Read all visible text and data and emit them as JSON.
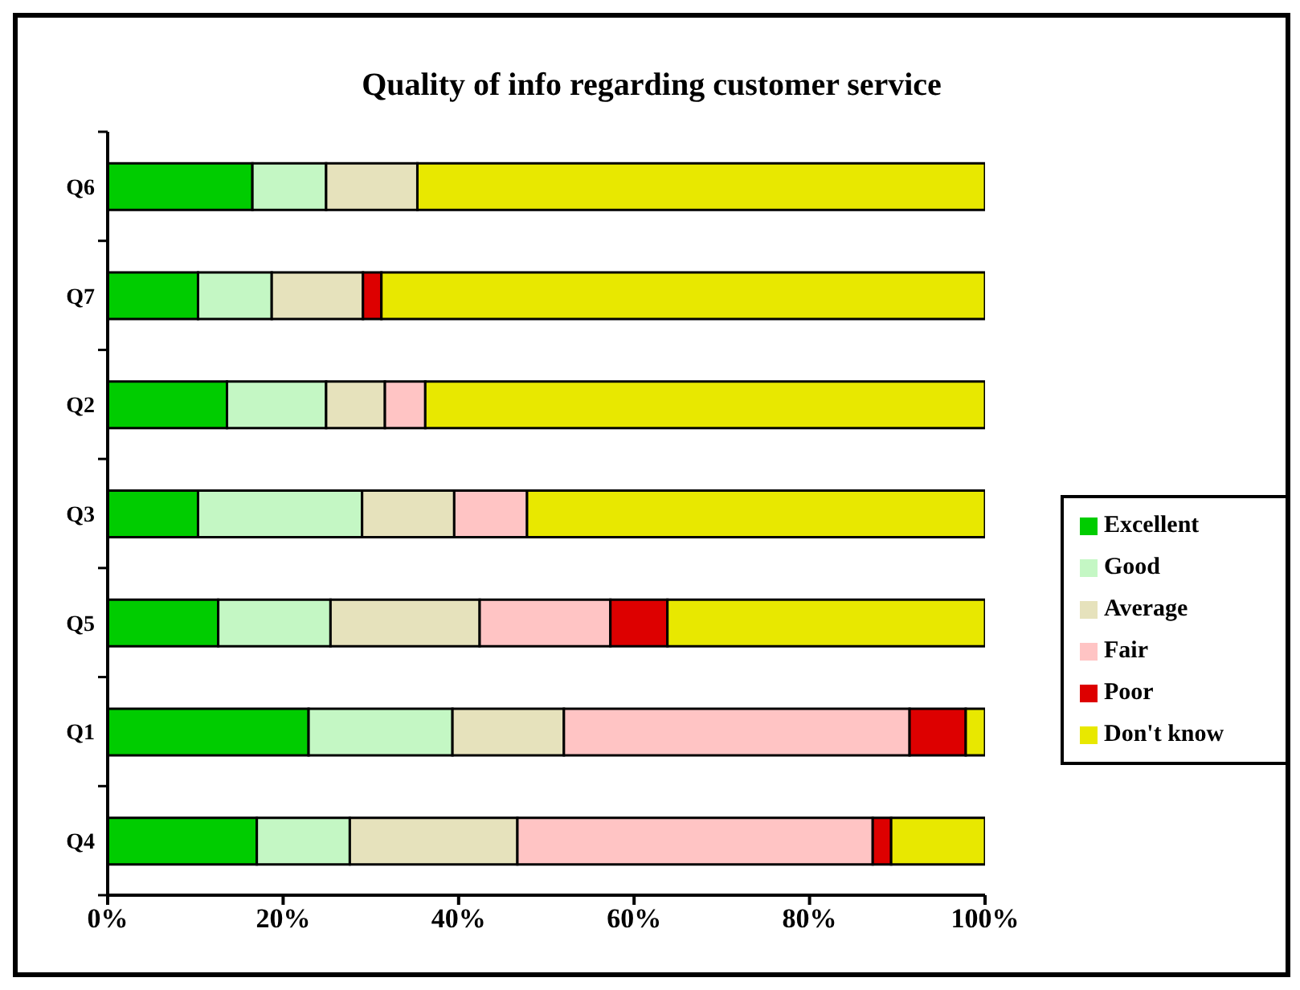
{
  "chart_data": {
    "type": "bar",
    "orientation": "horizontal",
    "stacked": true,
    "title": "Quality of info regarding customer service",
    "categories": [
      "Q6",
      "Q7",
      "Q2",
      "Q3",
      "Q5",
      "Q1",
      "Q4"
    ],
    "series": [
      {
        "name": "Excellent",
        "color": "#00cc00",
        "values": [
          16.5,
          10.3,
          13.6,
          10.3,
          12.6,
          22.9,
          17.0
        ]
      },
      {
        "name": "Good",
        "color": "#c4f7c4",
        "values": [
          8.4,
          8.4,
          11.3,
          18.7,
          12.8,
          16.4,
          10.6
        ]
      },
      {
        "name": "Average",
        "color": "#e6e2bc",
        "values": [
          10.4,
          10.4,
          6.7,
          10.5,
          17.0,
          12.7,
          19.1
        ]
      },
      {
        "name": "Fair",
        "color": "#ffc4c4",
        "values": [
          0,
          0,
          4.6,
          8.3,
          14.9,
          39.4,
          40.5
        ]
      },
      {
        "name": "Poor",
        "color": "#dd0000",
        "values": [
          0,
          2.1,
          0,
          0,
          6.5,
          6.4,
          2.1
        ]
      },
      {
        "name": "Don't know",
        "color": "#e8e800",
        "values": [
          64.7,
          68.8,
          63.8,
          52.2,
          36.2,
          2.2,
          10.7
        ]
      }
    ],
    "xlim": [
      0,
      100
    ],
    "xticks": [
      {
        "value": 0,
        "label": "0%"
      },
      {
        "value": 20,
        "label": "20%"
      },
      {
        "value": 40,
        "label": "40%"
      },
      {
        "value": 60,
        "label": "60%"
      },
      {
        "value": 80,
        "label": "80%"
      },
      {
        "value": 100,
        "label": "100%"
      }
    ],
    "legend": "right"
  }
}
